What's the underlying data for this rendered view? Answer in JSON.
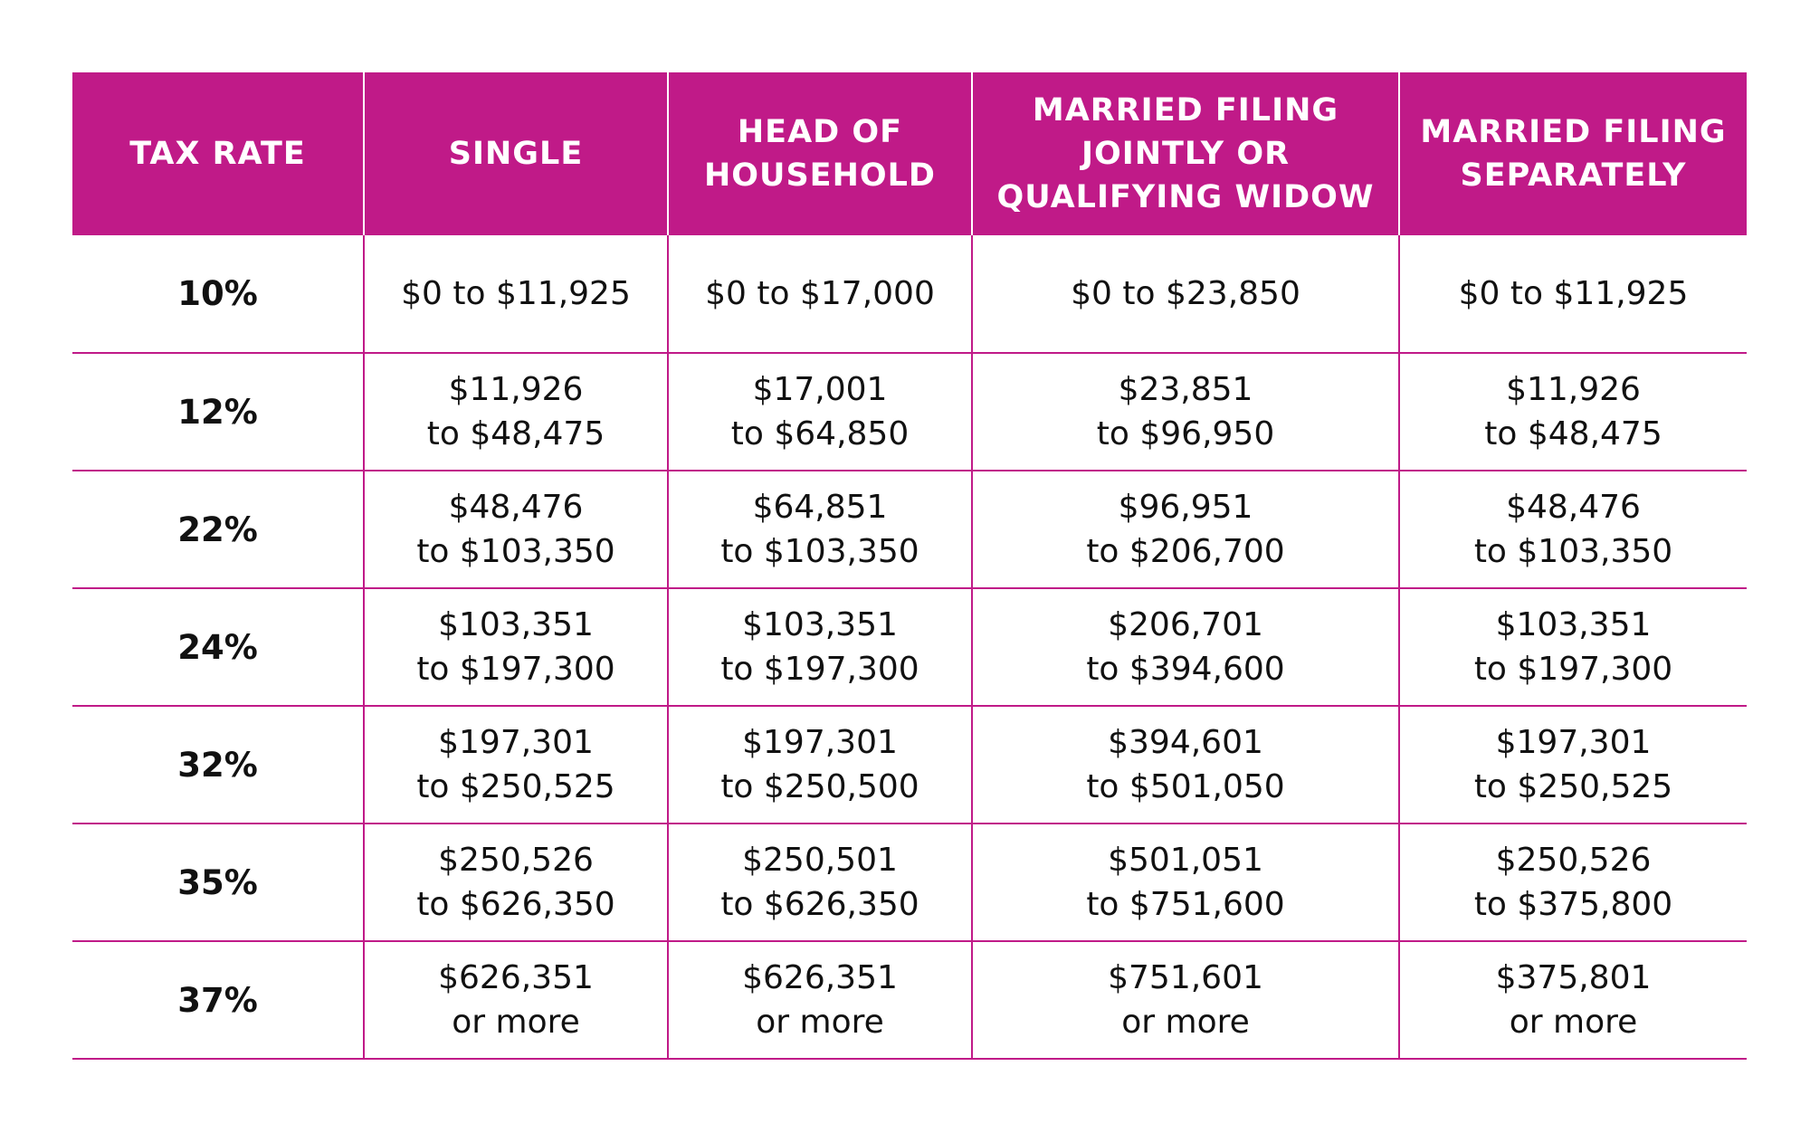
{
  "table": {
    "headers": [
      [
        "TAX RATE"
      ],
      [
        "SINGLE"
      ],
      [
        "HEAD OF",
        "HOUSEHOLD"
      ],
      [
        "MARRIED FILING",
        "JOINTLY OR",
        "QUALIFYING WIDOW"
      ],
      [
        "MARRIED FILING",
        "SEPARATELY"
      ]
    ],
    "rows": [
      {
        "rate": "10%",
        "cells": [
          [
            "$0 to $11,925"
          ],
          [
            "$0 to $17,000"
          ],
          [
            "$0 to $23,850"
          ],
          [
            "$0 to $11,925"
          ]
        ]
      },
      {
        "rate": "12%",
        "cells": [
          [
            "$11,926",
            "to $48,475"
          ],
          [
            "$17,001",
            "to $64,850"
          ],
          [
            "$23,851",
            "to $96,950"
          ],
          [
            "$11,926",
            "to $48,475"
          ]
        ]
      },
      {
        "rate": "22%",
        "cells": [
          [
            "$48,476",
            "to $103,350"
          ],
          [
            "$64,851",
            "to $103,350"
          ],
          [
            "$96,951",
            "to $206,700"
          ],
          [
            "$48,476",
            "to $103,350"
          ]
        ]
      },
      {
        "rate": "24%",
        "cells": [
          [
            "$103,351",
            "to $197,300"
          ],
          [
            "$103,351",
            "to $197,300"
          ],
          [
            "$206,701",
            "to $394,600"
          ],
          [
            "$103,351",
            "to $197,300"
          ]
        ]
      },
      {
        "rate": "32%",
        "cells": [
          [
            "$197,301",
            "to $250,525"
          ],
          [
            "$197,301",
            "to $250,500"
          ],
          [
            "$394,601",
            "to $501,050"
          ],
          [
            "$197,301",
            "to $250,525"
          ]
        ]
      },
      {
        "rate": "35%",
        "cells": [
          [
            "$250,526",
            "to $626,350"
          ],
          [
            "$250,501",
            "to $626,350"
          ],
          [
            "$501,051",
            "to $751,600"
          ],
          [
            "$250,526",
            "to $375,800"
          ]
        ]
      },
      {
        "rate": "37%",
        "cells": [
          [
            "$626,351",
            "or more"
          ],
          [
            "$626,351",
            "or more"
          ],
          [
            "$751,601",
            "or more"
          ],
          [
            "$375,801",
            "or more"
          ]
        ]
      }
    ]
  },
  "colors": {
    "header_background": "#c01a88",
    "header_text": "#ffffff",
    "border": "#c01a88",
    "body_text": "#111111"
  }
}
